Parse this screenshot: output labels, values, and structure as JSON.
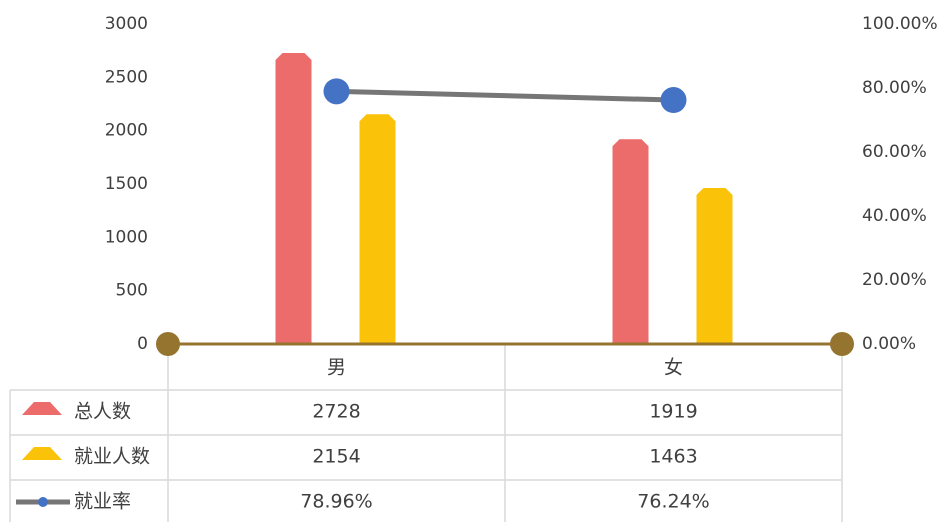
{
  "chart_data": {
    "type": "bar",
    "categories": [
      "男",
      "女"
    ],
    "series": [
      {
        "name": "总人数",
        "color": "#ec6b6b",
        "values": [
          2728,
          1919
        ]
      },
      {
        "name": "就业人数",
        "color": "#fbc20a",
        "values": [
          2154,
          1463
        ]
      },
      {
        "name": "就业率",
        "type": "line",
        "axis": "y2",
        "color": "#767676",
        "marker_color": "#4472c4",
        "values": [
          78.96,
          76.24
        ],
        "value_labels": [
          "78.96%",
          "76.24%"
        ]
      }
    ],
    "ylim": [
      0,
      3000
    ],
    "yticks": [
      0,
      500,
      1000,
      1500,
      2000,
      2500,
      3000
    ],
    "y2lim": [
      0,
      100
    ],
    "y2ticks": [
      {
        "value": 0,
        "label": "0.00%"
      },
      {
        "value": 20,
        "label": "20.00%"
      },
      {
        "value": 40,
        "label": "40.00%"
      },
      {
        "value": 60,
        "label": "60.00%"
      },
      {
        "value": 80,
        "label": "80.00%"
      },
      {
        "value": 100,
        "label": "100.00%"
      }
    ],
    "axis_color": "#94742f"
  }
}
